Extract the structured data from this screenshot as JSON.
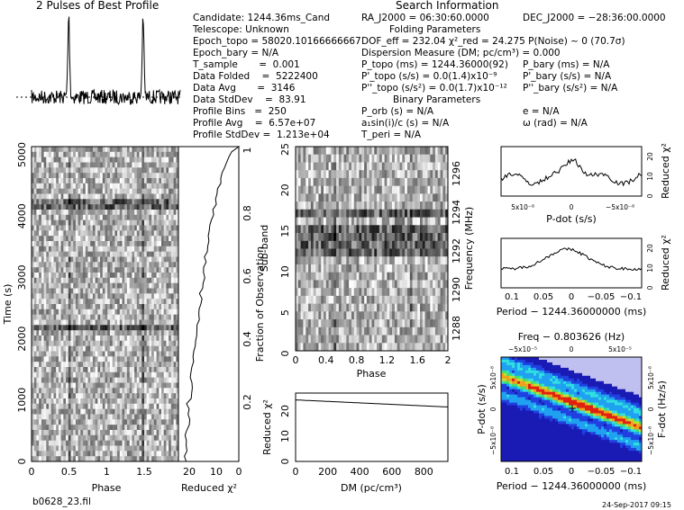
{
  "profile_title": "2 Pulses of Best Profile",
  "filename": "b0628_23.fil",
  "timestamp": "24-Sep-2017 09:15",
  "search_info": {
    "title": "Search Information",
    "candidate": "Candidate:  1244.36ms_Cand",
    "telescope": "Telescope:  Unknown",
    "epoch_topo": "Epoch_topo = 58020.10166666667",
    "epoch_bary": "Epoch_bary = N/A",
    "t_sample": "T_sample       =  0.001",
    "data_folded": "Data Folded    =  5222400",
    "data_avg": "Data Avg       =  3146",
    "data_stddev": "Data StdDev    =  83.91",
    "profile_bins": "Profile Bins   =  250",
    "profile_avg": "Profile Avg    =  6.57e+07",
    "profile_stddev": "Profile StdDev =  1.213e+04",
    "ra": "RA_J2000 = 06:30:60.0000",
    "dec": "DEC_J2000 = −28:36:00.0000",
    "folding_title": "Folding Parameters",
    "dof": "DOF_eff = 232.04  χ²_red = 24.275  P(Noise) ~ 0   (70.7σ)",
    "dm": "Dispersion Measure (DM; pc/cm³) = 0.000",
    "p_topo": "P_topo (ms) =  1244.36000(92)",
    "p_bary": "P_bary (ms) = N/A",
    "pd_topo": "P'_topo (s/s) = 0.0(1.4)x10⁻⁹",
    "pd_bary": "P'_bary (s/s) = N/A",
    "pdd_topo": "P''_topo (s/s²) = 0.0(1.7)x10⁻¹²",
    "pdd_bary": "P''_bary (s/s²) = N/A",
    "binary_title": "Binary Parameters",
    "p_orb": "P_orb (s) = N/A",
    "ecc": "e = N/A",
    "a1sini": "a₁sin(i)/c (s) = N/A",
    "omega": "ω (rad) = N/A",
    "t_peri": "T_peri = N/A"
  },
  "chart_data": [
    {
      "type": "line",
      "title": "2 Pulses of Best Profile",
      "xlabel": "Phase",
      "xlim": [
        0,
        2
      ],
      "peaks_at_phase": [
        0.5,
        1.5
      ]
    },
    {
      "type": "heatmap",
      "name": "time-phase",
      "xlabel": "Phase",
      "ylabel": "Time (s)",
      "xticks": [
        "0",
        "0.5",
        "1",
        "1.5"
      ],
      "yticks": [
        "0",
        "1000",
        "2000",
        "3000",
        "4000",
        "5000"
      ]
    },
    {
      "type": "line",
      "name": "reduced-chi2-vs-time",
      "xlabel": "Reduced χ²",
      "ylabel": "Fraction of Observation",
      "xticks": [
        "20",
        "10",
        "0"
      ],
      "yticks": [
        "0",
        "0.2",
        "0.4",
        "0.6",
        "0.8",
        "1"
      ]
    },
    {
      "type": "heatmap",
      "name": "subband-phase",
      "xlabel": "Phase",
      "ylabel": "Sub-band",
      "y2label": "Frequency (MHz)",
      "xticks": [
        "0",
        "0.4",
        "0.8",
        "1.2",
        "1.6",
        "2"
      ],
      "yticks": [
        "0",
        "5",
        "10",
        "15",
        "20",
        "25"
      ],
      "y2ticks": [
        "1288",
        "1290",
        "1292",
        "1294",
        "1296"
      ]
    },
    {
      "type": "line",
      "name": "dm-chi2",
      "xlabel": "DM (pc/cm³)",
      "ylabel": "Reduced χ²",
      "xticks": [
        "0",
        "200",
        "400",
        "600",
        "800"
      ],
      "yticks": [
        "0",
        "10",
        "20"
      ],
      "x": [
        0,
        200,
        400,
        600,
        800,
        950
      ],
      "y": [
        24.3,
        24.0,
        23.5,
        22.9,
        22.2,
        21.5
      ]
    },
    {
      "type": "line",
      "name": "pdot-chi2",
      "xlabel": "P-dot (s/s)",
      "ylabel": "Reduced χ²",
      "xticks": [
        "5x10⁻⁸",
        "0",
        "−5x10⁻⁸"
      ],
      "yticks": [
        "0",
        "10",
        "20"
      ]
    },
    {
      "type": "line",
      "name": "period-chi2",
      "xlabel": "Period − 1244.36000000 (ms)",
      "ylabel": "Reduced χ²",
      "xticks": [
        "0.1",
        "0.05",
        "0",
        "−0.05",
        "−0.1"
      ],
      "yticks": [
        "0",
        "10",
        "20"
      ]
    },
    {
      "type": "heatmap",
      "name": "period-pdot",
      "xlabel": "Period − 1244.36000000 (ms)",
      "ylabel": "P-dot (s/s)",
      "x2label": "Freq − 0.803626 (Hz)",
      "y2label": "F-dot (Hz/s)",
      "xticks": [
        "0.1",
        "0.05",
        "0",
        "−0.05",
        "−0.1"
      ],
      "x2ticks": [
        "−5x10⁻⁵",
        "0",
        "5x10⁻⁵"
      ],
      "yticks": [
        "5x10⁻⁸",
        "0",
        "−5x10⁻⁸"
      ],
      "y2ticks": [
        "−5x10⁻⁸",
        "0",
        "5x10⁻⁸"
      ]
    }
  ]
}
